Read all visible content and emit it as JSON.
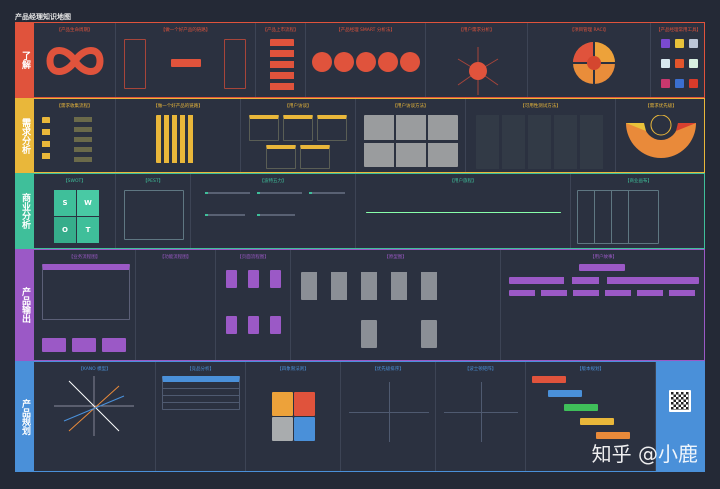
{
  "title": "产品经理知识地图",
  "colors": {
    "row1": "#e0533c",
    "row2": "#e9b73a",
    "row3": "#3fbf9a",
    "row4": "#9b59c6",
    "row5": "#4a90d9",
    "bg": "#242936"
  },
  "rows": [
    {
      "label": "了解",
      "panels": [
        "【产品生命周期】",
        "【做一个好产品的链路】",
        "【产品上市流程】",
        "【产品经理 SMART 分析法】",
        "【用户需求分析】",
        "【项目管理 RACI】",
        "【产品经理常用工具】"
      ]
    },
    {
      "label": "需求分析",
      "panels": [
        "【需求收集流程】",
        "【做一个好产品的链路】",
        "【用户访谈】",
        "【用户访谈方法】",
        "【可用性测试方法】",
        "【需求优先级】"
      ]
    },
    {
      "label": "商业分析",
      "panels": [
        "【SWOT】",
        "【PEST】",
        "【波特五力】",
        "【用户旅程】",
        "【商业画布】"
      ]
    },
    {
      "label": "产品输出",
      "panels": [
        "【业务流程图】",
        "【功能流程图】",
        "【页面流程图】",
        "【原型图】",
        "【用户故事】"
      ]
    },
    {
      "label": "产品规划",
      "panels": [
        "【KANO 模型】",
        "【竞品分析】",
        "【四象限法则】",
        "【优先级排序】",
        "【波士顿矩阵】",
        "【版本规划】"
      ]
    }
  ],
  "swot": [
    "S",
    "W",
    "O",
    "T"
  ],
  "watermark": "知乎 @小鹿"
}
